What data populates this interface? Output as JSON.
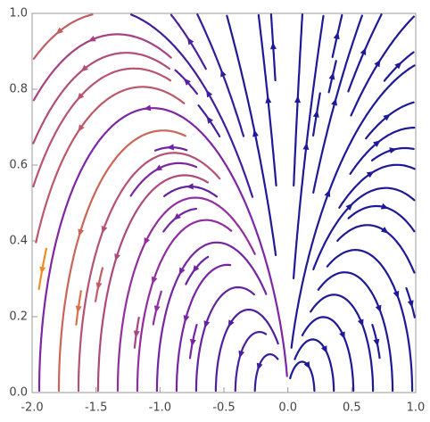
{
  "chart_data": {
    "type": "streamplot",
    "xlim": [
      -2,
      1
    ],
    "ylim": [
      0,
      1
    ],
    "xticks": [
      {
        "value": -2,
        "label": "-2.0"
      },
      -1.5,
      {
        "value": -1,
        "label": "-1.0"
      },
      -0.5,
      {
        "value": 0,
        "label": "0.0"
      },
      0.5,
      {
        "value": 1,
        "label": "1.0"
      }
    ],
    "yticks": [
      {
        "value": 0,
        "label": "0.0"
      },
      0.2,
      0.4,
      0.6,
      0.8,
      {
        "value": 1,
        "label": "1.0"
      }
    ]
  }
}
